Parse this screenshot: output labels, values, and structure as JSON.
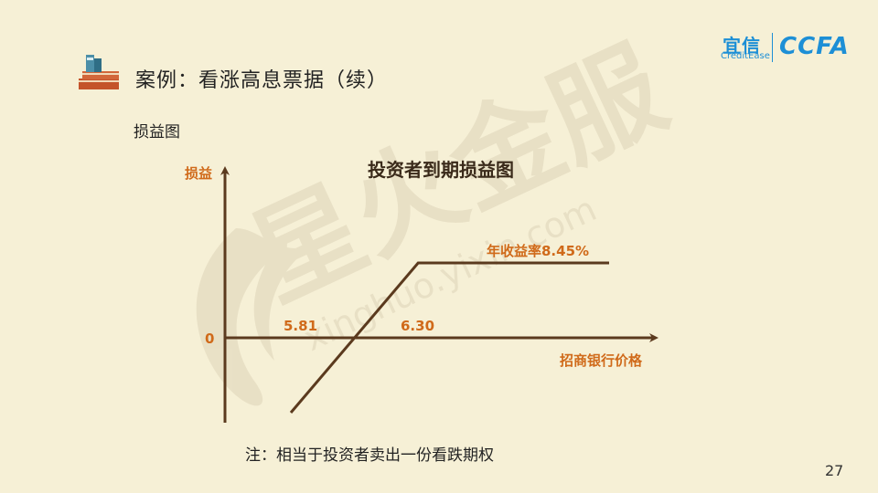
{
  "slide": {
    "title": "案例：看涨高息票据（续）",
    "subtitle": "损益图",
    "note": "注：相当于投资者卖出一份看跌期权",
    "page_number": "27"
  },
  "logo": {
    "cn": "宜信",
    "en": "CreditEase",
    "ccfa": "CCFA"
  },
  "watermark": {
    "cn": "星火金服",
    "url": "xinghuo.yixin.com"
  },
  "colors": {
    "background": "#f6f0d6",
    "axis": "#5b3a1e",
    "label": "#d06a1a",
    "brand": "#1d8fd6"
  },
  "chart_data": {
    "type": "line",
    "title": "投资者到期损益图",
    "xlabel": "招商银行价格",
    "ylabel": "损益",
    "origin_label": "0",
    "annotations": [
      "5.81",
      "6.30",
      "年收益率8.45%"
    ],
    "series": [
      {
        "x": [
          5.5,
          6.3,
          7.5
        ],
        "y": [
          -1,
          1,
          1
        ]
      }
    ],
    "key_points": {
      "breakeven": 5.81,
      "strike": 6.3
    }
  }
}
